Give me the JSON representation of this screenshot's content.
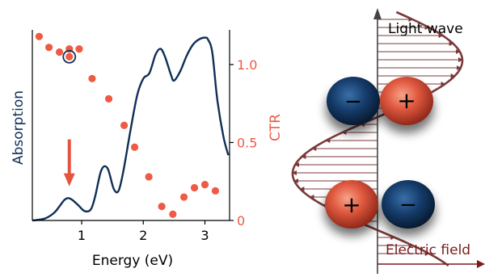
{
  "colors": {
    "absorption": "#0f2f57",
    "ctr": "#ee5a44",
    "arrow": "#e4553f",
    "wave": "#7a3a3a",
    "field_arrow": "#7a1c1c",
    "axis": "#000000"
  },
  "chart_data": {
    "type": "line+scatter",
    "xlabel": "Energy (eV)",
    "ylabel_left": "Absorption",
    "ylabel_right": "CTR",
    "xlim": [
      0.2,
      3.4
    ],
    "ylim_right": [
      0.0,
      1.3
    ],
    "ylim_left": [
      0.0,
      1.0
    ],
    "x_ticks": [
      1,
      2,
      3
    ],
    "y_right_ticks": [
      0.0,
      0.5,
      1.0
    ],
    "y_right_tick_labels": [
      "0",
      "0.5",
      "1.0"
    ],
    "series": [
      {
        "name": "Absorption",
        "kind": "line",
        "axis": "left",
        "x": [
          0.2,
          0.4,
          0.55,
          0.65,
          0.72,
          0.78,
          0.85,
          0.95,
          1.05,
          1.15,
          1.22,
          1.32,
          1.42,
          1.52,
          1.6,
          1.68,
          1.78,
          1.9,
          2.0,
          2.1,
          2.2,
          2.28,
          2.35,
          2.45,
          2.5,
          2.6,
          2.7,
          2.8,
          2.9,
          3.0,
          3.05,
          3.12,
          3.2,
          3.3,
          3.38
        ],
        "y": [
          0.0,
          0.01,
          0.04,
          0.08,
          0.11,
          0.12,
          0.11,
          0.08,
          0.05,
          0.06,
          0.13,
          0.27,
          0.28,
          0.17,
          0.16,
          0.27,
          0.46,
          0.67,
          0.76,
          0.79,
          0.89,
          0.92,
          0.88,
          0.78,
          0.75,
          0.8,
          0.88,
          0.94,
          0.97,
          0.98,
          0.97,
          0.9,
          0.65,
          0.45,
          0.35
        ]
      },
      {
        "name": "CTR",
        "kind": "scatter",
        "axis": "right",
        "x": [
          0.31,
          0.47,
          0.64,
          0.8,
          0.96,
          1.17,
          1.44,
          1.69,
          1.86,
          2.09,
          2.3,
          2.48,
          2.66,
          2.83,
          3.0,
          3.17
        ],
        "y": [
          1.18,
          1.11,
          1.08,
          1.1,
          1.1,
          0.91,
          0.78,
          0.61,
          0.47,
          0.28,
          0.09,
          0.04,
          0.15,
          0.21,
          0.23,
          0.19
        ]
      }
    ],
    "highlighted_point": {
      "x": 0.8,
      "y": 1.05
    },
    "arrow_marker": {
      "x": 0.8,
      "y_from": 0.52,
      "y_to": 0.24
    }
  },
  "diagram": {
    "light_wave_label": "Light wave",
    "electric_field_label": "Electric field",
    "charge_plus": "+",
    "charge_minus": "−"
  }
}
